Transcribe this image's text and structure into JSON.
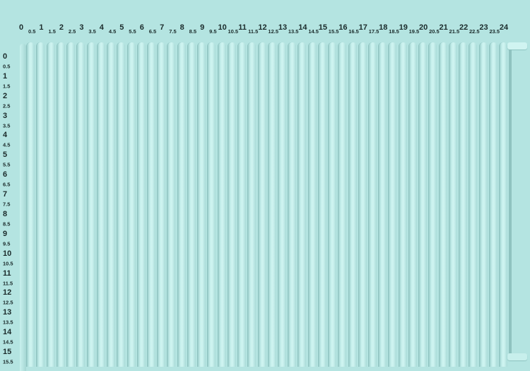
{
  "board": {
    "color": "#b4e4e1",
    "top_scale": [
      "0",
      "0.5",
      "1",
      "1.5",
      "2",
      "2.5",
      "3",
      "3.5",
      "4",
      "4.5",
      "5",
      "5.5",
      "6",
      "6.5",
      "7",
      "7.5",
      "8",
      "8.5",
      "9",
      "9.5",
      "10",
      "10.5",
      "11",
      "11.5",
      "12",
      "12.5",
      "13",
      "13.5",
      "14",
      "14.5",
      "15",
      "15.5",
      "16",
      "16.5",
      "17",
      "17.5",
      "18",
      "18.5",
      "19",
      "19.5",
      "20",
      "20.5",
      "21",
      "21.5",
      "22",
      "22.5",
      "23",
      "23.5",
      "24"
    ],
    "left_scale": [
      "0",
      "0.5",
      "1",
      "1.5",
      "2",
      "2.5",
      "3",
      "3.5",
      "4",
      "4.5",
      "5",
      "5.5",
      "6",
      "6.5",
      "7",
      "7.5",
      "8",
      "8.5",
      "9",
      "9.5",
      "10",
      "10.5",
      "11",
      "11.5",
      "12",
      "12.5",
      "13",
      "13.5",
      "14",
      "14.5",
      "15",
      "15.5"
    ]
  }
}
